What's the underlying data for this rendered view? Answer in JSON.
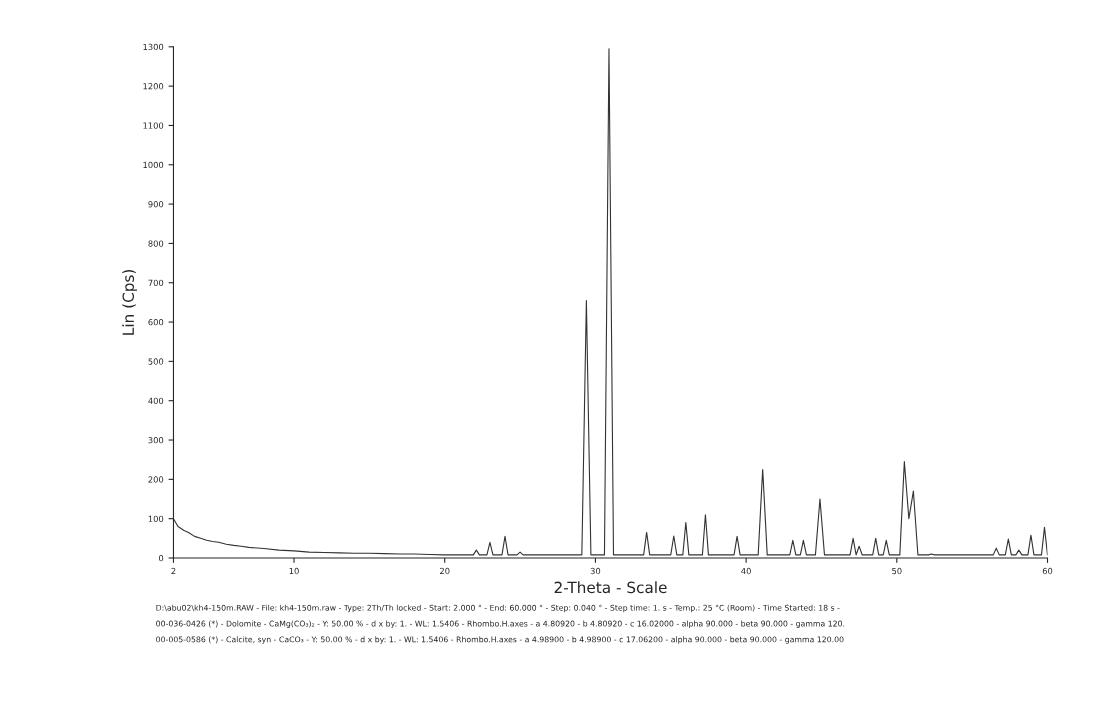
{
  "chart_data": {
    "type": "line",
    "xlabel": "2-Theta - Scale",
    "ylabel": "Lin (Cps)",
    "xlim": [
      2,
      60
    ],
    "ylim": [
      0,
      1300
    ],
    "xticks": [
      2,
      10,
      20,
      30,
      40,
      50,
      60
    ],
    "yticks": [
      0,
      100,
      200,
      300,
      400,
      500,
      600,
      700,
      800,
      900,
      1000,
      1100,
      1200,
      1300
    ],
    "grid": false,
    "legend": false,
    "series": [
      {
        "color": "#333333",
        "x": [
          2,
          2.3,
          2.7,
          3,
          3.4,
          3.8,
          4.2,
          4.6,
          5,
          5.5,
          6,
          6.5,
          7,
          8,
          9,
          10,
          11,
          12,
          13,
          14,
          15,
          16,
          17,
          18,
          19,
          20,
          21,
          21.9,
          22.1,
          22.3,
          22.8,
          23.0,
          23.2,
          23.8,
          24.0,
          24.2,
          24.8,
          25.0,
          25.2,
          29.1,
          29.4,
          29.7,
          30.6,
          30.9,
          31.2,
          33.2,
          33.4,
          33.6,
          35.0,
          35.2,
          35.4,
          35.8,
          36.0,
          36.2,
          37.1,
          37.3,
          37.5,
          39.2,
          39.4,
          39.6,
          40.8,
          41.1,
          41.4,
          42.9,
          43.1,
          43.3,
          43.6,
          43.8,
          44.0,
          44.6,
          44.9,
          45.2,
          46.9,
          47.1,
          47.3,
          47.5,
          47.7,
          48.4,
          48.6,
          48.8,
          49.1,
          49.3,
          49.5,
          50.2,
          50.5,
          50.8,
          51.1,
          51.4,
          52.1,
          52.3,
          52.5,
          56.4,
          56.6,
          56.8,
          57.2,
          57.4,
          57.6,
          57.9,
          58.1,
          58.3,
          58.7,
          58.9,
          59.1,
          59.6,
          59.8,
          60
        ],
        "values": [
          100,
          80,
          70,
          65,
          55,
          50,
          45,
          42,
          40,
          35,
          32,
          30,
          27,
          24,
          20,
          18,
          15,
          14,
          13,
          12,
          12,
          11,
          10,
          10,
          9,
          8,
          8,
          8,
          20,
          8,
          8,
          40,
          8,
          8,
          55,
          8,
          8,
          15,
          8,
          8,
          655,
          8,
          8,
          1295,
          8,
          8,
          65,
          8,
          8,
          56,
          8,
          8,
          90,
          8,
          8,
          110,
          8,
          8,
          55,
          8,
          8,
          225,
          8,
          8,
          45,
          8,
          8,
          45,
          8,
          8,
          150,
          8,
          8,
          50,
          8,
          30,
          8,
          8,
          50,
          8,
          8,
          45,
          8,
          8,
          245,
          100,
          170,
          8,
          8,
          10,
          8,
          8,
          25,
          8,
          8,
          48,
          8,
          8,
          20,
          8,
          8,
          58,
          8,
          8,
          78,
          8
        ]
      }
    ],
    "annotations": [
      "D:\\abu02\\kh4-150m.RAW - File: kh4-150m.raw - Type: 2Th/Th locked - Start: 2.000 ° - End: 60.000 ° - Step: 0.040 ° - Step time: 1. s - Temp.: 25 °C (Room) - Time Started: 18 s -",
      "00-036-0426 (*) - Dolomite - CaMg(CO₃)₂ - Y: 50.00 % - d x by: 1. - WL: 1.5406 - Rhombo.H.axes - a 4.80920 - b 4.80920 - c 16.02000 - alpha 90.000 - beta 90.000 - gamma 120.",
      "00-005-0586 (*) - Calcite, syn - CaCO₃ - Y: 50.00 % - d x by: 1. - WL: 1.5406 - Rhombo.H.axes - a 4.98900 - b 4.98900 - c 17.06200 - alpha 90.000 - beta 90.000 - gamma 120.00"
    ]
  }
}
